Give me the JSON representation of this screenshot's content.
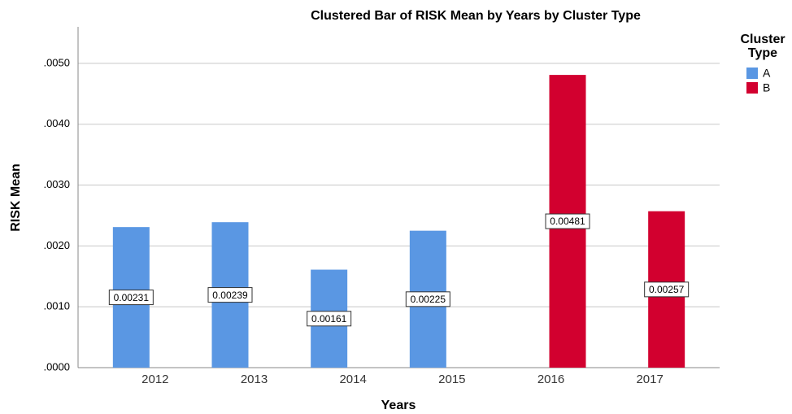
{
  "chart_data": {
    "type": "bar",
    "title": "Clustered Bar of RISK Mean by Years by Cluster Type",
    "x_label": "Years",
    "y_label": "RISK Mean",
    "legend_title": "Cluster Type",
    "categories": [
      "2012",
      "2013",
      "2014",
      "2015",
      "2016",
      "2017"
    ],
    "series": [
      {
        "name": "A",
        "color": "#5a97e3",
        "values": [
          0.00231,
          0.00239,
          0.00161,
          0.00225,
          null,
          null
        ]
      },
      {
        "name": "B",
        "color": "#d2002f",
        "values": [
          null,
          null,
          null,
          null,
          0.00481,
          0.00257
        ]
      }
    ],
    "ylim": [
      0,
      0.0056
    ],
    "yticks": [
      {
        "value": 0,
        "label": ".0000"
      },
      {
        "value": 0.001,
        "label": ".0010"
      },
      {
        "value": 0.002,
        "label": ".0020"
      },
      {
        "value": 0.003,
        "label": ".0030"
      },
      {
        "value": 0.004,
        "label": ".0040"
      },
      {
        "value": 0.005,
        "label": ".0050"
      }
    ],
    "grid": true,
    "legend": "right"
  }
}
